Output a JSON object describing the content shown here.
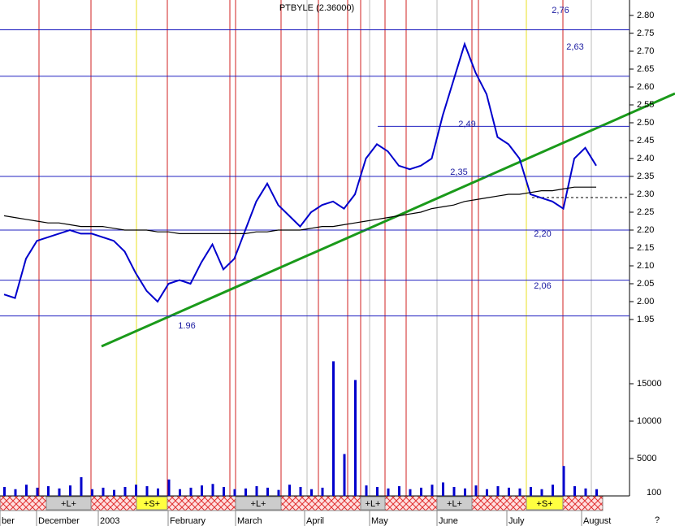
{
  "chart_data": {
    "type": "line",
    "title": "PTBYLE (2.36000)",
    "ylim": [
      1.95,
      2.8
    ],
    "yticks": [
      {
        "value": 1.95,
        "label": "1.95"
      },
      {
        "value": 2.0,
        "label": "2.00"
      },
      {
        "value": 2.05,
        "label": "2.05"
      },
      {
        "value": 2.1,
        "label": "2.10"
      },
      {
        "value": 2.15,
        "label": "2.15"
      },
      {
        "value": 2.2,
        "label": "2.20"
      },
      {
        "value": 2.25,
        "label": "2.25"
      },
      {
        "value": 2.3,
        "label": "2.30"
      },
      {
        "value": 2.35,
        "label": "2.35"
      },
      {
        "value": 2.4,
        "label": "2.40"
      },
      {
        "value": 2.45,
        "label": "2.45"
      },
      {
        "value": 2.5,
        "label": "2.50"
      },
      {
        "value": 2.55,
        "label": "2.55"
      },
      {
        "value": 2.6,
        "label": "2.60"
      },
      {
        "value": 2.65,
        "label": "2.65"
      },
      {
        "value": 2.7,
        "label": "2.70"
      },
      {
        "value": 2.75,
        "label": "2.75"
      },
      {
        "value": 2.8,
        "label": "2.80"
      }
    ],
    "series": [
      {
        "color": "#0000cc",
        "values": [
          2.02,
          2.01,
          2.12,
          2.17,
          2.18,
          2.19,
          2.2,
          2.19,
          2.19,
          2.18,
          2.17,
          2.14,
          2.08,
          2.03,
          2.0,
          2.05,
          2.06,
          2.05,
          2.11,
          2.16,
          2.09,
          2.12,
          2.2,
          2.28,
          2.33,
          2.27,
          2.24,
          2.21,
          2.25,
          2.27,
          2.28,
          2.26,
          2.3,
          2.4,
          2.44,
          2.42,
          2.38,
          2.37,
          2.38,
          2.4,
          2.52,
          2.62,
          2.72,
          2.64,
          2.58,
          2.46,
          2.44,
          2.4,
          2.3,
          2.29,
          2.28,
          2.26,
          2.4,
          2.43,
          2.38
        ]
      },
      {
        "color": "#000000",
        "values": [
          2.24,
          2.235,
          2.23,
          2.225,
          2.22,
          2.22,
          2.215,
          2.21,
          2.21,
          2.21,
          2.205,
          2.2,
          2.2,
          2.2,
          2.195,
          2.195,
          2.19,
          2.19,
          2.19,
          2.19,
          2.19,
          2.19,
          2.19,
          2.195,
          2.195,
          2.2,
          2.2,
          2.2,
          2.205,
          2.21,
          2.21,
          2.215,
          2.22,
          2.225,
          2.23,
          2.235,
          2.24,
          2.245,
          2.25,
          2.26,
          2.265,
          2.27,
          2.28,
          2.285,
          2.29,
          2.295,
          2.3,
          2.3,
          2.305,
          2.31,
          2.31,
          2.315,
          2.32,
          2.32,
          2.32
        ]
      }
    ],
    "levels": [
      {
        "value": 2.76,
        "label": "2,76"
      },
      {
        "value": 2.63,
        "label": "2,63"
      },
      {
        "value": 2.49,
        "label": "2,49"
      },
      {
        "value": 2.35,
        "label": "2,35"
      },
      {
        "value": 2.2,
        "label": "2,20"
      },
      {
        "value": 2.06,
        "label": "2,06"
      },
      {
        "value": 1.96,
        "label": "1.96"
      }
    ],
    "volume": {
      "color": "#0000cc",
      "ylim": [
        0,
        20000
      ],
      "yticks": [
        5000,
        10000,
        15000
      ],
      "unit_label": "100",
      "values": [
        1200,
        900,
        1500,
        1100,
        1300,
        1000,
        1400,
        2500,
        900,
        1100,
        800,
        1200,
        1500,
        1300,
        1000,
        2200,
        900,
        1100,
        1400,
        1600,
        1200,
        900,
        1000,
        1300,
        1100,
        800,
        1500,
        1200,
        900,
        1100,
        18000,
        5600,
        15500,
        1400,
        1200,
        1000,
        1300,
        900,
        1100,
        1500,
        1800,
        1200,
        1000,
        1400,
        900,
        1300,
        1100,
        1000,
        1200,
        900,
        1500,
        4000,
        1300,
        1000,
        900
      ]
    },
    "signals": [
      "+L+",
      "+S+",
      "+L+",
      "+L+",
      "+L+",
      "+S+"
    ],
    "x_labels": [
      "ber",
      "December",
      "2003",
      "February",
      "March",
      "April",
      "May",
      "June",
      "July",
      "August"
    ],
    "corner_mark": "?"
  }
}
